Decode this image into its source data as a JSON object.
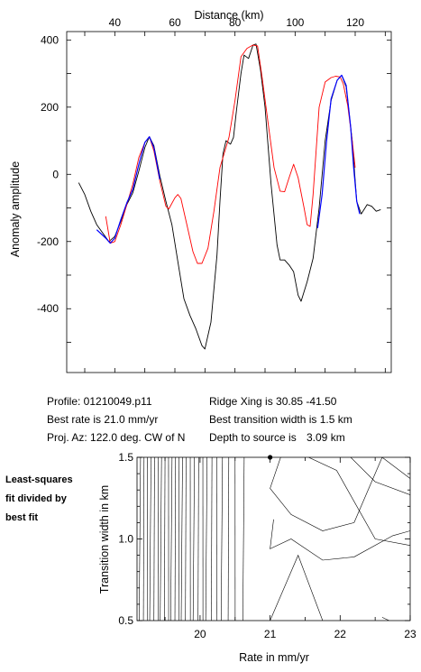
{
  "profile_info": {
    "profile": "Profile: 01210049.p11",
    "best_rate": "Best rate is 21.0 mm/yr",
    "proj_az": "Proj. Az: 122.0 deg. CW of N",
    "ridge_xing": "Ridge Xing is 30.85 -41.50",
    "best_transition": "Best transition width is 1.5 km",
    "depth": "Depth to source is",
    "depth_value": "3.09 km"
  },
  "side_label": [
    "Least-squares",
    "fit divided by",
    "best fit"
  ],
  "chart_data": [
    {
      "type": "line",
      "title": "",
      "xlabel": "Distance (km)",
      "ylabel": "Anomaly amplitude",
      "xlim": [
        24,
        132
      ],
      "ylim": [
        -590,
        425
      ],
      "xticks": [
        40,
        60,
        80,
        100,
        120
      ],
      "yticks": [
        -400,
        -200,
        0,
        200,
        400
      ],
      "grid": false,
      "series": [
        {
          "color": "#000000",
          "points": [
            [
              28,
              -25
            ],
            [
              30,
              -60
            ],
            [
              32,
              -110
            ],
            [
              34,
              -150
            ],
            [
              36,
              -175
            ],
            [
              38,
              -200
            ],
            [
              40,
              -185
            ],
            [
              42,
              -140
            ],
            [
              44,
              -90
            ],
            [
              46,
              -55
            ],
            [
              48,
              10
            ],
            [
              50,
              80
            ],
            [
              51.5,
              112
            ],
            [
              53,
              85
            ],
            [
              55,
              -5
            ],
            [
              57,
              -80
            ],
            [
              59,
              -150
            ],
            [
              61,
              -260
            ],
            [
              63,
              -370
            ],
            [
              65,
              -420
            ],
            [
              67,
              -460
            ],
            [
              69,
              -510
            ],
            [
              70,
              -520
            ],
            [
              72,
              -440
            ],
            [
              74,
              -240
            ],
            [
              75,
              -80
            ],
            [
              76,
              60
            ],
            [
              77,
              100
            ],
            [
              78.5,
              90
            ],
            [
              79.5,
              110
            ],
            [
              80.5,
              190
            ],
            [
              82,
              300
            ],
            [
              83,
              355
            ],
            [
              84.5,
              345
            ],
            [
              86,
              385
            ],
            [
              87,
              388
            ],
            [
              88.5,
              310
            ],
            [
              90,
              200
            ],
            [
              92,
              -30
            ],
            [
              94,
              -210
            ],
            [
              95,
              -255
            ],
            [
              96.5,
              -255
            ],
            [
              98,
              -270
            ],
            [
              99.5,
              -290
            ],
            [
              101,
              -360
            ],
            [
              102,
              -378
            ],
            [
              104,
              -320
            ],
            [
              106,
              -250
            ],
            [
              108,
              -100
            ],
            [
              110,
              100
            ],
            [
              112,
              220
            ],
            [
              114,
              280
            ],
            [
              115.5,
              295
            ],
            [
              117,
              260
            ],
            [
              119,
              100
            ],
            [
              120.5,
              -80
            ],
            [
              122,
              -118
            ],
            [
              124,
              -90
            ],
            [
              125.5,
              -95
            ],
            [
              127,
              -110
            ],
            [
              128.5,
              -105
            ]
          ]
        },
        {
          "color": "#ff0000",
          "points": [
            [
              37,
              -125
            ],
            [
              38.5,
              -205
            ],
            [
              40,
              -200
            ],
            [
              42,
              -150
            ],
            [
              44,
              -90
            ],
            [
              46,
              -30
            ],
            [
              48,
              50
            ],
            [
              50,
              95
            ],
            [
              51.5,
              112
            ],
            [
              53,
              70
            ],
            [
              55,
              -20
            ],
            [
              57,
              -95
            ],
            [
              58,
              -103
            ],
            [
              60,
              -70
            ],
            [
              61,
              -60
            ],
            [
              62,
              -72
            ],
            [
              64,
              -150
            ],
            [
              66,
              -230
            ],
            [
              67.5,
              -265
            ],
            [
              69,
              -265
            ],
            [
              71,
              -220
            ],
            [
              73,
              -110
            ],
            [
              75,
              20
            ],
            [
              78,
              110
            ],
            [
              80,
              220
            ],
            [
              82,
              350
            ],
            [
              84,
              375
            ],
            [
              86,
              385
            ],
            [
              87.5,
              382
            ],
            [
              89,
              290
            ],
            [
              91,
              155
            ],
            [
              93,
              20
            ],
            [
              95,
              -50
            ],
            [
              96.5,
              -52
            ],
            [
              98,
              -10
            ],
            [
              99.5,
              30
            ],
            [
              101,
              -10
            ],
            [
              103,
              -100
            ],
            [
              104,
              -150
            ],
            [
              105,
              -155
            ],
            [
              106,
              -60
            ],
            [
              108,
              200
            ],
            [
              110,
              275
            ],
            [
              112,
              288
            ],
            [
              113.5,
              292
            ],
            [
              115,
              290
            ],
            [
              116,
              270
            ],
            [
              117.5,
              205
            ],
            [
              119,
              100
            ],
            [
              120,
              20
            ]
          ]
        },
        {
          "color": "#0000ff",
          "points": [
            [
              34,
              -165
            ],
            [
              37,
              -190
            ],
            [
              38.5,
              -205
            ],
            [
              40,
              -190
            ],
            [
              42,
              -135
            ],
            [
              44,
              -85
            ],
            [
              46,
              -45
            ],
            [
              48,
              30
            ],
            [
              50,
              95
            ],
            [
              51.5,
              112
            ],
            [
              53,
              80
            ],
            [
              55,
              -15
            ]
          ]
        },
        {
          "color": "#0000ff",
          "points": [
            [
              107.5,
              -160
            ],
            [
              109,
              -60
            ],
            [
              110.5,
              100
            ],
            [
              112,
              225
            ],
            [
              114,
              280
            ],
            [
              115.5,
              295
            ],
            [
              117,
              265
            ],
            [
              118.5,
              140
            ],
            [
              119.5,
              20
            ],
            [
              120.5,
              -80
            ],
            [
              121.5,
              -118
            ]
          ]
        }
      ]
    },
    {
      "type": "contour",
      "title": "",
      "xlabel": "Rate in mm/yr",
      "ylabel": "Transition width in km",
      "xlim": [
        19.1,
        23.0
      ],
      "ylim": [
        0.5,
        1.5
      ],
      "xticks": [
        20,
        21,
        22,
        23
      ],
      "yticks": [
        0.5,
        1.0,
        1.5
      ],
      "best_point": [
        21.0,
        1.5
      ],
      "dense_line_rates": [
        19.15,
        19.2,
        19.25,
        19.3,
        19.35,
        19.4,
        19.45,
        19.5,
        19.55,
        19.6,
        19.65,
        19.7,
        19.75,
        19.8,
        19.86,
        19.92,
        19.98,
        20.04,
        20.1,
        20.17,
        20.24,
        20.32,
        20.41,
        20.5,
        20.63
      ],
      "contour_lines": [
        [
          [
            21.15,
            1.5
          ],
          [
            21.0,
            1.31
          ],
          [
            21.3,
            1.15
          ],
          [
            21.75,
            1.05
          ],
          [
            22.2,
            1.1
          ],
          [
            22.6,
            1.5
          ]
        ],
        [
          [
            21.05,
            1.12
          ],
          [
            21.0,
            0.94
          ],
          [
            21.3,
            1.0
          ],
          [
            21.75,
            0.87
          ],
          [
            22.2,
            0.89
          ],
          [
            22.75,
            1.02
          ],
          [
            23.0,
            1.05
          ]
        ],
        [
          [
            21.0,
            0.5
          ],
          [
            21.4,
            0.9
          ],
          [
            21.75,
            0.5
          ]
        ],
        [
          [
            21.55,
            1.5
          ],
          [
            21.95,
            1.42
          ],
          [
            22.5,
            1.0
          ],
          [
            23.0,
            0.96
          ]
        ],
        [
          [
            22.15,
            1.5
          ],
          [
            22.5,
            1.35
          ],
          [
            23.0,
            1.27
          ]
        ],
        [
          [
            22.6,
            1.5
          ],
          [
            23.0,
            1.37
          ]
        ],
        [
          [
            22.6,
            0.52
          ],
          [
            22.7,
            0.5
          ]
        ]
      ]
    }
  ]
}
